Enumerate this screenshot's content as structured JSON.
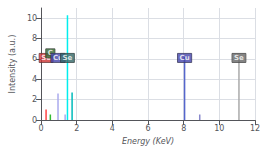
{
  "chart_data": {
    "type": "stem",
    "xlabel": "Energy (KeV)",
    "ylabel": "Intensity (a.u.)",
    "x": [
      0.28,
      0.52,
      0.95,
      1.35,
      1.48,
      1.74,
      8.05,
      8.9,
      11.1
    ],
    "values": [
      1.05,
      0.55,
      2.6,
      0.55,
      10.3,
      2.7,
      6.2,
      0.55,
      6.2
    ],
    "colors": [
      "#ff4444",
      "#33bb33",
      "#aaaaee",
      "#aaaaee",
      "#00eeee",
      "#00bbbb",
      "#5566cc",
      "#8888cc",
      "#aaaaaa"
    ],
    "xlim": [
      0,
      12
    ],
    "xticks": [
      0,
      2,
      4,
      6,
      8,
      10,
      12
    ],
    "ylim": [
      0,
      11
    ],
    "yticks": [
      0,
      2,
      4,
      6,
      8,
      10
    ],
    "grid": true,
    "annotations": [
      {
        "text": "Se",
        "x": 0.28,
        "y": 6.1,
        "color": "#cc3333"
      },
      {
        "text": "C",
        "x": 0.52,
        "y": 6.55,
        "color": "#336633"
      },
      {
        "text": "Cu",
        "x": 0.95,
        "y": 6.1,
        "color": "#4444aa"
      },
      {
        "text": "Se",
        "x": 1.48,
        "y": 6.1,
        "color": "#336666"
      },
      {
        "text": "Cu",
        "x": 8.05,
        "y": 6.1,
        "color": "#4444aa"
      },
      {
        "text": "Se",
        "x": 11.1,
        "y": 6.1,
        "color": "#666666"
      }
    ]
  }
}
